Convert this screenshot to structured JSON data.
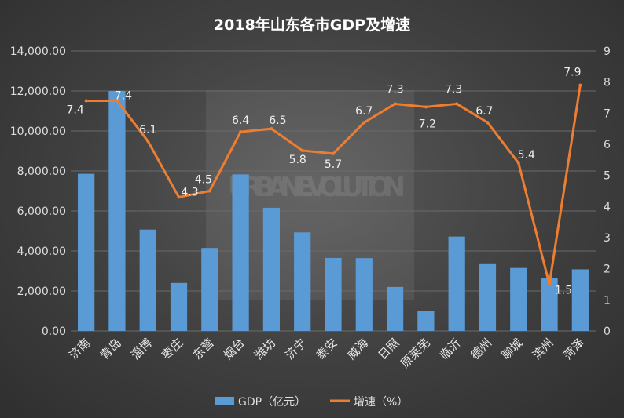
{
  "chart_data": {
    "type": "bar+line",
    "title": "2018年山东各市GDP及增速",
    "categories": [
      "济南",
      "青岛",
      "淄博",
      "枣庄",
      "东营",
      "烟台",
      "潍坊",
      "济宁",
      "泰安",
      "威海",
      "日照",
      "原莱芜",
      "临沂",
      "德州",
      "聊城",
      "滨州",
      "菏泽"
    ],
    "series": [
      {
        "name": "GDP（亿元）",
        "type": "bar",
        "axis": "left",
        "color": "#5b9bd5",
        "values": [
          7860,
          12000,
          5070,
          2400,
          4150,
          7830,
          6160,
          4930,
          3650,
          3640,
          2200,
          1000,
          4720,
          3380,
          3150,
          2640,
          3080
        ]
      },
      {
        "name": "增速（%）",
        "type": "line",
        "axis": "right",
        "color": "#ed7d31",
        "values": [
          7.4,
          7.4,
          6.1,
          4.3,
          4.5,
          6.4,
          6.5,
          5.8,
          5.7,
          6.7,
          7.3,
          7.2,
          7.3,
          6.7,
          5.4,
          1.5,
          7.9
        ],
        "labels": [
          "7.4",
          "7.4",
          "6.1",
          "4.3",
          "4.5",
          "6.4",
          "6.5",
          "5.8",
          "5.7",
          "6.7",
          "7.3",
          "7.2",
          "7.3",
          "6.7",
          "5.4",
          "1.5",
          "7.9"
        ]
      }
    ],
    "y_left": {
      "min": 0,
      "max": 14000,
      "step": 2000,
      "ticks": [
        "0.00",
        "2,000.00",
        "4,000.00",
        "6,000.00",
        "8,000.00",
        "10,000.00",
        "12,000.00",
        "14,000.00"
      ]
    },
    "y_right": {
      "min": 0,
      "max": 9,
      "step": 1,
      "ticks": [
        "0",
        "1",
        "2",
        "3",
        "4",
        "5",
        "6",
        "7",
        "8",
        "9"
      ]
    },
    "legend_position": "bottom",
    "watermark_text": "URBAN EVOLUTION"
  }
}
